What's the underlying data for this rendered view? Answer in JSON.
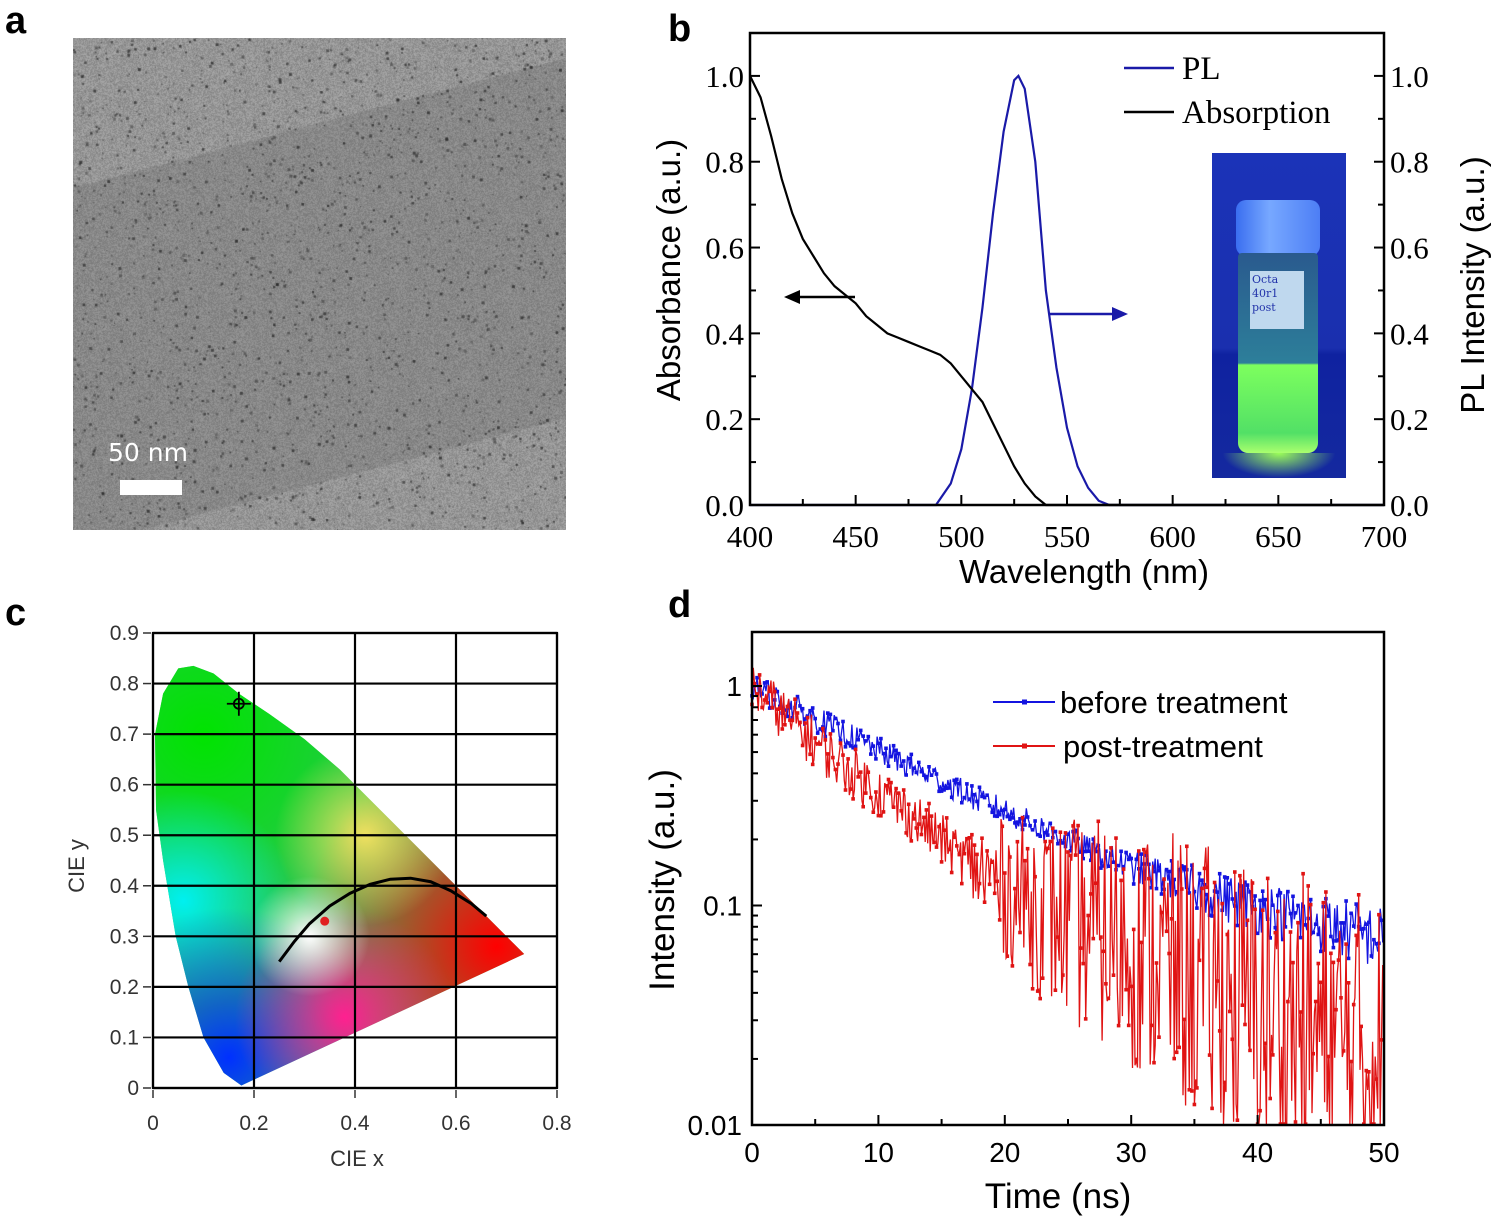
{
  "panel_labels": {
    "a": "a",
    "b": "b",
    "c": "c",
    "d": "d"
  },
  "panel_a": {
    "scale_bar_label": "50 nm"
  },
  "inset": {
    "vial_label": "Octa 40r1 post"
  },
  "chart_data": [
    {
      "panel": "b",
      "type": "line",
      "xlabel": "Wavelength (nm)",
      "ylabel": "Absorbance (a.u.)",
      "y2label": "PL Intensity (a.u.)",
      "xlim": [
        400,
        700
      ],
      "ylim": [
        0,
        1.1
      ],
      "y2lim": [
        0,
        1.1
      ],
      "xticks": [
        400,
        450,
        500,
        550,
        600,
        650,
        700
      ],
      "yticks": [
        "0.0",
        "0.2",
        "0.4",
        "0.6",
        "0.8",
        "1.0"
      ],
      "legend_position": "top-right",
      "series": [
        {
          "name": "PL",
          "color": "#1a1aa8",
          "axis": "right",
          "x": [
            400,
            488,
            495,
            500,
            505,
            510,
            515,
            520,
            525,
            527,
            530,
            535,
            540,
            545,
            550,
            555,
            560,
            565,
            570,
            700
          ],
          "y": [
            0,
            0,
            0.05,
            0.13,
            0.27,
            0.46,
            0.68,
            0.87,
            0.99,
            1.0,
            0.97,
            0.8,
            0.5,
            0.32,
            0.18,
            0.09,
            0.04,
            0.01,
            0,
            0
          ]
        },
        {
          "name": "Absorption",
          "color": "#000000",
          "axis": "left",
          "x": [
            400,
            405,
            410,
            415,
            420,
            425,
            430,
            435,
            440,
            445,
            450,
            455,
            460,
            465,
            470,
            475,
            480,
            485,
            490,
            495,
            500,
            505,
            510,
            515,
            520,
            525,
            530,
            535,
            540,
            700
          ],
          "y": [
            1.0,
            0.95,
            0.86,
            0.76,
            0.68,
            0.62,
            0.58,
            0.54,
            0.51,
            0.49,
            0.47,
            0.44,
            0.42,
            0.4,
            0.39,
            0.38,
            0.37,
            0.36,
            0.35,
            0.33,
            0.3,
            0.27,
            0.24,
            0.19,
            0.14,
            0.09,
            0.05,
            0.02,
            0,
            0
          ]
        }
      ],
      "annotations": [
        {
          "type": "arrow",
          "direction": "left",
          "color": "#000000"
        },
        {
          "type": "arrow",
          "direction": "right",
          "color": "#1a1aa8"
        }
      ]
    },
    {
      "panel": "c",
      "type": "scatter",
      "xlabel": "CIE x",
      "ylabel": "CIE y",
      "xlim": [
        0,
        0.8
      ],
      "ylim": [
        0,
        0.9
      ],
      "xticks": [
        "0",
        "0.2",
        "0.4",
        "0.6",
        "0.8"
      ],
      "yticks": [
        "0",
        "0.1",
        "0.2",
        "0.3",
        "0.4",
        "0.5",
        "0.6",
        "0.7",
        "0.8",
        "0.9"
      ],
      "grid": true,
      "points": [
        {
          "x": 0.17,
          "y": 0.76,
          "marker": "crosshair",
          "color": "#000000"
        },
        {
          "x": 0.34,
          "y": 0.33,
          "marker": "dot",
          "color": "#e02020"
        }
      ],
      "planckian_locus": {
        "x": [
          0.25,
          0.28,
          0.31,
          0.35,
          0.39,
          0.43,
          0.47,
          0.51,
          0.55,
          0.59,
          0.63,
          0.66
        ],
        "y": [
          0.25,
          0.29,
          0.325,
          0.36,
          0.385,
          0.403,
          0.413,
          0.415,
          0.408,
          0.39,
          0.365,
          0.34
        ]
      },
      "spectral_locus": {
        "x": [
          0.175,
          0.14,
          0.1,
          0.07,
          0.045,
          0.02,
          0.006,
          0.004,
          0.02,
          0.05,
          0.08,
          0.12,
          0.17,
          0.23,
          0.3,
          0.37,
          0.45,
          0.55,
          0.65,
          0.735
        ],
        "y": [
          0.005,
          0.03,
          0.1,
          0.2,
          0.3,
          0.45,
          0.55,
          0.7,
          0.78,
          0.83,
          0.835,
          0.82,
          0.78,
          0.74,
          0.69,
          0.63,
          0.55,
          0.45,
          0.35,
          0.265
        ]
      }
    },
    {
      "panel": "d",
      "type": "scatter",
      "xlabel": "Time (ns)",
      "ylabel": "Intensity (a.u.)",
      "xlim": [
        0,
        50
      ],
      "ylim": [
        0.01,
        1.76
      ],
      "yscale": "log",
      "xticks": [
        "0",
        "10",
        "20",
        "30",
        "40",
        "50"
      ],
      "yticks": [
        "1",
        "0.1",
        "0.01"
      ],
      "legend_position": "top-right",
      "series": [
        {
          "name": "before treatment",
          "color": "#1414e0",
          "x": [
            0,
            2.5,
            5,
            7.5,
            10,
            12.5,
            15,
            17.5,
            20,
            22.5,
            25,
            27.5,
            30,
            32.5,
            35,
            37.5,
            40,
            42.5,
            45,
            47.5,
            50
          ],
          "y": [
            1,
            0.84,
            0.71,
            0.6,
            0.51,
            0.43,
            0.37,
            0.31,
            0.27,
            0.23,
            0.2,
            0.17,
            0.15,
            0.135,
            0.12,
            0.108,
            0.098,
            0.09,
            0.083,
            0.076,
            0.07
          ]
        },
        {
          "name": "post-treatment",
          "color": "#e01414",
          "x": [
            0,
            2.5,
            5,
            7.5,
            10,
            12.5,
            15,
            17.5,
            20,
            22.5,
            25,
            27.5,
            30,
            32.5,
            35,
            37.5,
            40,
            42.5,
            45,
            47.5,
            50
          ],
          "y": [
            1,
            0.74,
            0.55,
            0.42,
            0.33,
            0.26,
            0.2,
            0.15,
            0.12,
            0.1,
            0.085,
            0.075,
            0.065,
            0.055,
            0.045,
            0.039,
            0.033,
            0.029,
            0.025,
            0.022,
            0.02
          ]
        }
      ]
    }
  ]
}
